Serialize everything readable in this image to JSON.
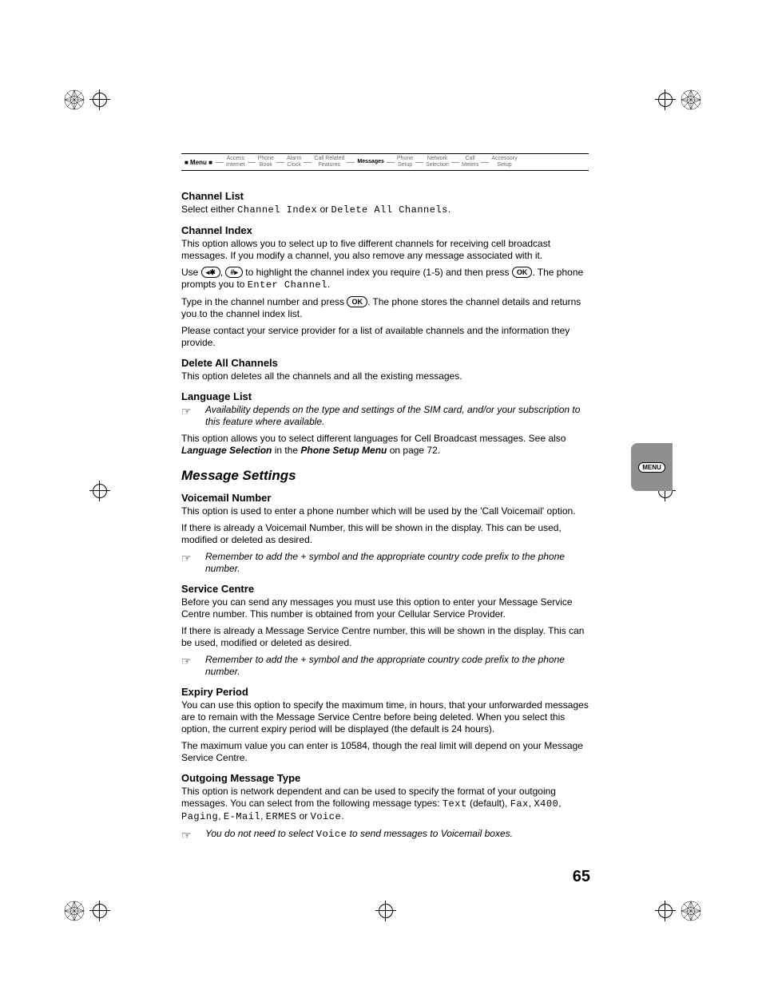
{
  "menu_strip": {
    "label": "Menu",
    "items": [
      {
        "l1": "Access",
        "l2": "Internet"
      },
      {
        "l1": "Phone",
        "l2": "Book"
      },
      {
        "l1": "Alarm",
        "l2": "Clock"
      },
      {
        "l1": "Call Related",
        "l2": "Features"
      },
      {
        "l1": "Messages",
        "l2": ""
      },
      {
        "l1": "Phone",
        "l2": "Setup"
      },
      {
        "l1": "Network",
        "l2": "Selection"
      },
      {
        "l1": "Call",
        "l2": "Meters"
      },
      {
        "l1": "Accessory",
        "l2": "Setup"
      }
    ],
    "active_index": 4
  },
  "side_tab": "MENU",
  "page_number": "65",
  "keys": {
    "star": "◂✱",
    "hash": "#▸",
    "ok": "OK"
  },
  "mono": {
    "channel_index": "Channel Index",
    "delete_all": "Delete All Channels",
    "enter_channel": "Enter Channel",
    "text": "Text",
    "fax": "Fax",
    "x400": "X400",
    "paging": "Paging",
    "email": "E-Mail",
    "ermes": "ERMES",
    "voice": "Voice"
  },
  "sections": {
    "channel_list": {
      "h": "Channel List",
      "p1a": "Select either ",
      "p1b": " or ",
      "p1c": "."
    },
    "channel_index": {
      "h": "Channel Index",
      "p1": "This option allows you to select up to five different channels for receiving cell broadcast messages. If you modify a channel, you also remove any message associated with it.",
      "p2a": "Use ",
      "p2b": ", ",
      "p2c": " to highlight the channel index you require (1-5) and then press ",
      "p2d": ". The phone prompts you to ",
      "p2e": ".",
      "p3a": "Type in the channel number and press ",
      "p3b": ". The phone stores the channel details and returns you to the channel index list.",
      "p4": "Please contact your service provider for a list of available channels and the information they provide."
    },
    "delete_all": {
      "h": "Delete All Channels",
      "p1": "This option deletes all the channels and all the existing messages."
    },
    "language_list": {
      "h": "Language List",
      "note": "Availability depends on the type and settings of the SIM card, and/or your subscription to this feature where available.",
      "p1a": "This option allows you to select different languages for Cell Broadcast messages. See also ",
      "p1_b1": "Language Selection",
      "p1b": " in the ",
      "p1_b2": "Phone Setup Menu",
      "p1c": " on page 72."
    },
    "message_settings": {
      "h": "Message Settings"
    },
    "voicemail": {
      "h": "Voicemail Number",
      "p1": "This option is used to enter a phone number which will be used by the 'Call Voicemail' option.",
      "p2": "If there is already a Voicemail Number, this will be shown in the display. This can be used, modified or deleted as desired.",
      "note": "Remember to add the + symbol and the appropriate country code prefix to the phone number."
    },
    "service_centre": {
      "h": "Service Centre",
      "p1": "Before you can send any messages you must use this option to enter your Message Service Centre number. This number is obtained from your Cellular Service Provider.",
      "p2": "If there is already a Message Service Centre number, this will be shown in the display. This can be used, modified or deleted as desired.",
      "note": "Remember to add the + symbol and the appropriate country code prefix to the phone number."
    },
    "expiry": {
      "h": "Expiry Period",
      "p1": "You can use this option to specify the maximum time, in hours, that your unforwarded messages are to remain with the Message Service Centre before being deleted. When you select this option, the current expiry period will be displayed (the default is 24 hours).",
      "p2": "The maximum value you can enter is 10584, though the real limit will depend on your Message Service Centre."
    },
    "outgoing": {
      "h": "Outgoing Message Type",
      "p1a": "This option is network dependent and can be used to specify the format of your outgoing messages. You can select from the following message types: ",
      "p1b": " (default), ",
      "sep": ", ",
      "or": " or ",
      "end": ".",
      "note_a": "You do not need to select ",
      "note_b": " to send messages to Voicemail boxes."
    }
  }
}
